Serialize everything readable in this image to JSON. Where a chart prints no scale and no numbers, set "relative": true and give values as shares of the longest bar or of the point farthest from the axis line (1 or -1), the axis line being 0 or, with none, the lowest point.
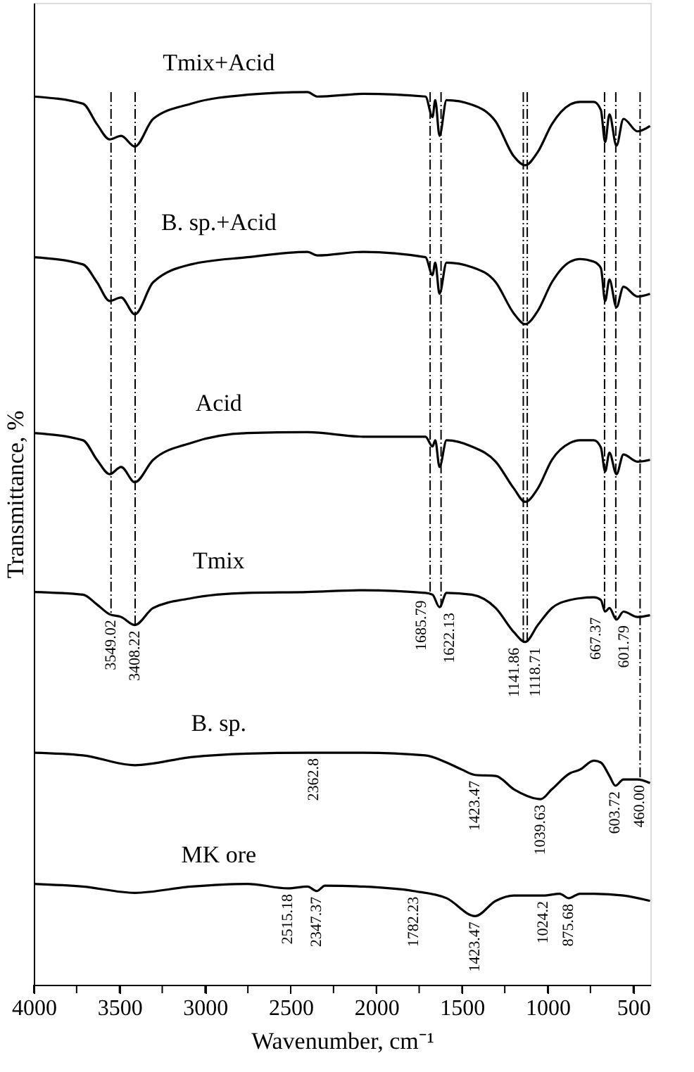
{
  "chart_data": {
    "type": "line",
    "relative": true,
    "xlabel": "Wavenumber, cm⁻¹",
    "ylabel": "Transmittance, %",
    "xlim": [
      4000,
      400
    ],
    "xticks": [
      4000,
      {
        "value": 3750,
        "label": null
      },
      3500,
      {
        "value": 3250,
        "label": null
      },
      3000,
      {
        "value": 2750,
        "label": null
      },
      2500,
      {
        "value": 2250,
        "label": null
      },
      2000,
      {
        "value": 1750,
        "label": null
      },
      1500,
      {
        "value": 1250,
        "label": null
      },
      1000,
      {
        "value": 750,
        "label": null
      },
      500
    ],
    "series": [
      {
        "name": "Tmix+Acid",
        "color": "#000000",
        "x": [
          4000,
          3713,
          3631,
          3557,
          3490,
          3410,
          3303,
          3082,
          2754,
          2402,
          2344,
          2074,
          1713,
          1672,
          1656,
          1631,
          1590,
          1443,
          1303,
          1197,
          1131,
          1057,
          975,
          869,
          811,
          730,
          689,
          664,
          639,
          598,
          557,
          475,
          402
        ],
        "values": [
          0.995,
          0.987,
          0.964,
          0.947,
          0.951,
          0.939,
          0.97,
          0.987,
          0.997,
          1.0,
          0.995,
          0.998,
          0.995,
          0.972,
          0.991,
          0.951,
          0.991,
          0.986,
          0.967,
          0.928,
          0.918,
          0.933,
          0.964,
          0.986,
          0.989,
          0.989,
          0.98,
          0.944,
          0.975,
          0.94,
          0.97,
          0.956,
          0.962
        ]
      },
      {
        "name": "B. sp.+Acid",
        "color": "#000000",
        "x": [
          4000,
          3713,
          3631,
          3557,
          3490,
          3410,
          3303,
          3082,
          2754,
          2402,
          2344,
          2074,
          1713,
          1672,
          1656,
          1631,
          1590,
          1443,
          1303,
          1197,
          1131,
          1057,
          975,
          869,
          811,
          730,
          689,
          664,
          639,
          598,
          557,
          475,
          402
        ],
        "values": [
          0.815,
          0.807,
          0.787,
          0.766,
          0.77,
          0.751,
          0.787,
          0.807,
          0.815,
          0.821,
          0.817,
          0.821,
          0.815,
          0.795,
          0.809,
          0.774,
          0.809,
          0.804,
          0.787,
          0.752,
          0.74,
          0.755,
          0.787,
          0.81,
          0.813,
          0.81,
          0.803,
          0.766,
          0.79,
          0.759,
          0.782,
          0.771,
          0.774
        ]
      },
      {
        "name": "Acid",
        "color": "#000000",
        "x": [
          4000,
          3713,
          3631,
          3557,
          3490,
          3410,
          3303,
          3082,
          2754,
          2402,
          2074,
          1713,
          1672,
          1656,
          1631,
          1590,
          1443,
          1303,
          1197,
          1131,
          1057,
          975,
          869,
          811,
          730,
          689,
          664,
          639,
          598,
          557,
          475,
          402
        ],
        "values": [
          0.618,
          0.61,
          0.588,
          0.572,
          0.58,
          0.563,
          0.588,
          0.607,
          0.618,
          0.619,
          0.614,
          0.614,
          0.603,
          0.61,
          0.58,
          0.61,
          0.603,
          0.586,
          0.556,
          0.541,
          0.556,
          0.588,
          0.607,
          0.61,
          0.61,
          0.602,
          0.575,
          0.596,
          0.572,
          0.594,
          0.586,
          0.588
        ]
      },
      {
        "name": "Tmix",
        "color": "#000000",
        "x": [
          4000,
          3713,
          3631,
          3557,
          3490,
          3410,
          3303,
          3082,
          2754,
          2402,
          2074,
          1713,
          1672,
          1631,
          1590,
          1443,
          1303,
          1197,
          1131,
          1057,
          975,
          869,
          811,
          730,
          689,
          664,
          639,
          598,
          557,
          475,
          402
        ],
        "values": [
          0.44,
          0.437,
          0.426,
          0.415,
          0.412,
          0.403,
          0.422,
          0.433,
          0.439,
          0.44,
          0.442,
          0.439,
          0.437,
          0.423,
          0.439,
          0.437,
          0.422,
          0.395,
          0.384,
          0.403,
          0.422,
          0.431,
          0.433,
          0.434,
          0.431,
          0.418,
          0.422,
          0.409,
          0.418,
          0.412,
          0.414
        ]
      },
      {
        "name": "B. sp.",
        "color": "#000000",
        "x": [
          4000,
          3713,
          3410,
          3082,
          2754,
          2402,
          2074,
          1713,
          1590,
          1500,
          1423,
          1303,
          1197,
          1040,
          975,
          869,
          811,
          730,
          689,
          639,
          604,
          557,
          475,
          402
        ],
        "values": [
          0.26,
          0.257,
          0.246,
          0.255,
          0.259,
          0.26,
          0.26,
          0.257,
          0.249,
          0.241,
          0.235,
          0.234,
          0.219,
          0.208,
          0.219,
          0.237,
          0.241,
          0.251,
          0.249,
          0.234,
          0.223,
          0.23,
          0.23,
          0.226
        ]
      },
      {
        "name": "MK ore",
        "color": "#000000",
        "x": [
          4000,
          3713,
          3410,
          3082,
          2754,
          2515,
          2402,
          2347,
          2300,
          2074,
          1782,
          1590,
          1423,
          1303,
          1197,
          1024,
          930,
          876,
          811,
          730,
          557,
          402
        ],
        "values": [
          0.113,
          0.11,
          0.103,
          0.11,
          0.113,
          0.108,
          0.11,
          0.105,
          0.111,
          0.11,
          0.105,
          0.097,
          0.077,
          0.094,
          0.1,
          0.1,
          0.102,
          0.097,
          0.102,
          0.102,
          0.1,
          0.094
        ]
      }
    ],
    "ref_lines": [
      {
        "axis": "x",
        "value": 3549.02,
        "line_style": "dashed",
        "color": "#000000"
      },
      {
        "axis": "x",
        "value": 3408.22,
        "line_style": "dashed",
        "color": "#000000"
      },
      {
        "axis": "x",
        "value": 1685.79,
        "line_style": "dashed",
        "color": "#000000"
      },
      {
        "axis": "x",
        "value": 1622.13,
        "line_style": "dashed",
        "color": "#000000"
      },
      {
        "axis": "x",
        "value": 1141.86,
        "line_style": "dashed",
        "color": "#000000"
      },
      {
        "axis": "x",
        "value": 1118.71,
        "line_style": "dashed",
        "color": "#000000"
      },
      {
        "axis": "x",
        "value": 667.37,
        "line_style": "dashed",
        "color": "#000000"
      },
      {
        "axis": "x",
        "value": 601.79,
        "line_style": "dashed",
        "color": "#000000"
      },
      {
        "axis": "x",
        "value": 460.0,
        "line_style": "dashed",
        "color": "#000000"
      }
    ],
    "annotations": [
      {
        "text": "3549.02",
        "x": 3549.02,
        "y": 0.415
      },
      {
        "text": "3408.22",
        "x": 3408.22,
        "y": 0.403
      },
      {
        "text": "1685.79",
        "x": 1685.79,
        "y": 0.437
      },
      {
        "text": "1622.13",
        "x": 1622.13,
        "y": 0.423
      },
      {
        "text": "1141.86",
        "x": 1141.86,
        "y": 0.384
      },
      {
        "text": "1118.71",
        "x": 1118.71,
        "y": 0.384
      },
      {
        "text": "667.37",
        "x": 667.37,
        "y": 0.418
      },
      {
        "text": "601.79",
        "x": 601.79,
        "y": 0.409
      },
      {
        "text": "460.00",
        "x": 460.0,
        "y": 0.23
      },
      {
        "text": "2362.8",
        "x": 2362.8,
        "y": 0.26
      },
      {
        "text": "1423.47",
        "x": 1423.47,
        "y": 0.235
      },
      {
        "text": "1039.63",
        "x": 1039.63,
        "y": 0.208
      },
      {
        "text": "603.72",
        "x": 603.72,
        "y": 0.223
      },
      {
        "text": "2515.18",
        "x": 2515.18,
        "y": 0.108
      },
      {
        "text": "2347.37",
        "x": 2347.37,
        "y": 0.105
      },
      {
        "text": "1782.23",
        "x": 1782.23,
        "y": 0.105
      },
      {
        "text": "1423.47",
        "x": 1423.47,
        "y": 0.077
      },
      {
        "text": "1024.2",
        "x": 1024.2,
        "y": 0.1
      },
      {
        "text": "875.68",
        "x": 875.68,
        "y": 0.097
      }
    ]
  }
}
